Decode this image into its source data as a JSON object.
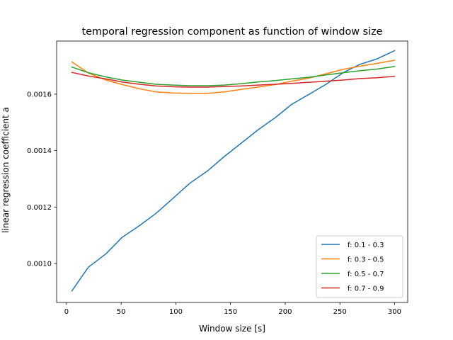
{
  "chart_data": {
    "type": "line",
    "title": "temporal regression component as function of window size",
    "xlabel": "Window size [s]",
    "ylabel": "linear regression coefficient a",
    "xlim": [
      -9,
      312
    ],
    "ylim": [
      0.000862,
      0.001788
    ],
    "x_ticks": [
      0,
      50,
      100,
      150,
      200,
      250,
      300
    ],
    "x_tick_labels": [
      "0",
      "50",
      "100",
      "150",
      "200",
      "250",
      "300"
    ],
    "y_ticks": [
      0.001,
      0.0012,
      0.0014,
      0.0016
    ],
    "y_tick_labels": [
      "0.0010",
      "0.0012",
      "0.0014",
      "0.0016"
    ],
    "grid": false,
    "legend_position": "lower right",
    "x": [
      5,
      20,
      36,
      51,
      67,
      82,
      98,
      113,
      129,
      144,
      160,
      175,
      191,
      206,
      222,
      237,
      253,
      268,
      284,
      300
    ],
    "series": [
      {
        "name": "f: 0.1 - 0.3",
        "color": "#1f77b4",
        "values": [
          0.000903,
          0.000987,
          0.001034,
          0.001093,
          0.001135,
          0.001178,
          0.001233,
          0.001285,
          0.001328,
          0.001378,
          0.001427,
          0.001473,
          0.001517,
          0.001564,
          0.0016,
          0.001634,
          0.001676,
          0.001705,
          0.001725,
          0.001754
        ]
      },
      {
        "name": "f: 0.3 - 0.5",
        "color": "#ff7f0e",
        "values": [
          0.001714,
          0.001675,
          0.00165,
          0.001634,
          0.001619,
          0.001608,
          0.001604,
          0.001603,
          0.001603,
          0.001608,
          0.001617,
          0.001625,
          0.001634,
          0.001646,
          0.001657,
          0.001672,
          0.001688,
          0.001699,
          0.001709,
          0.00172
        ]
      },
      {
        "name": "f: 0.5 - 0.7",
        "color": "#2ca02c",
        "values": [
          0.001696,
          0.001676,
          0.001661,
          0.00165,
          0.001642,
          0.001635,
          0.001632,
          0.00163,
          0.00163,
          0.001632,
          0.001637,
          0.001643,
          0.001648,
          0.001654,
          0.00166,
          0.001668,
          0.001676,
          0.001683,
          0.001689,
          0.001698
        ]
      },
      {
        "name": "f: 0.7 - 0.9",
        "color": "#d62728",
        "values": [
          0.001677,
          0.001664,
          0.001654,
          0.001643,
          0.001635,
          0.001629,
          0.001626,
          0.001625,
          0.001625,
          0.001627,
          0.001629,
          0.001632,
          0.001635,
          0.001638,
          0.001642,
          0.001646,
          0.00165,
          0.001655,
          0.001658,
          0.001663
        ]
      }
    ]
  }
}
